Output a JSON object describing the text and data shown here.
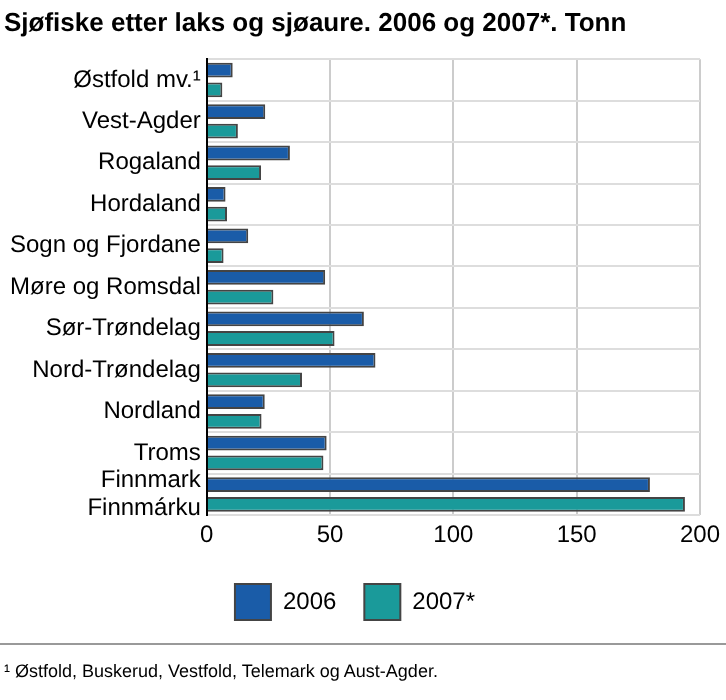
{
  "chart_data": {
    "type": "bar",
    "orientation": "horizontal",
    "title": "Sjøfiske etter laks og sjøaure. 2006 og 2007*. Tonn",
    "categories": [
      "Østfold mv.¹",
      "Vest-Agder",
      "Rogaland",
      "Hordaland",
      "Sogn og Fjordane",
      "Møre og Romsdal",
      "Sør-Trøndelag",
      "Nord-Trøndelag",
      "Nordland",
      "Troms",
      "Finnmark\nFinnmárku"
    ],
    "series": [
      {
        "name": "2006",
        "color": "#1a5ca8",
        "values": [
          10.5,
          23.7,
          33.7,
          7.6,
          16.8,
          48,
          63.7,
          68.4,
          23.5,
          48.6,
          179.7
        ]
      },
      {
        "name": "2007*",
        "color": "#1a9a9a",
        "values": [
          6.3,
          12.6,
          22,
          8.2,
          6.8,
          27,
          51.8,
          38.6,
          22.2,
          47.3,
          193.9
        ]
      }
    ],
    "xlim": [
      0,
      200
    ],
    "xticks": [
      0,
      50,
      100,
      150,
      200
    ],
    "grid": true,
    "legend": "bottom",
    "annotations": [
      "¹ Østfold, Buskerud, Vestfold, Telemark og Aust-Agder."
    ]
  }
}
